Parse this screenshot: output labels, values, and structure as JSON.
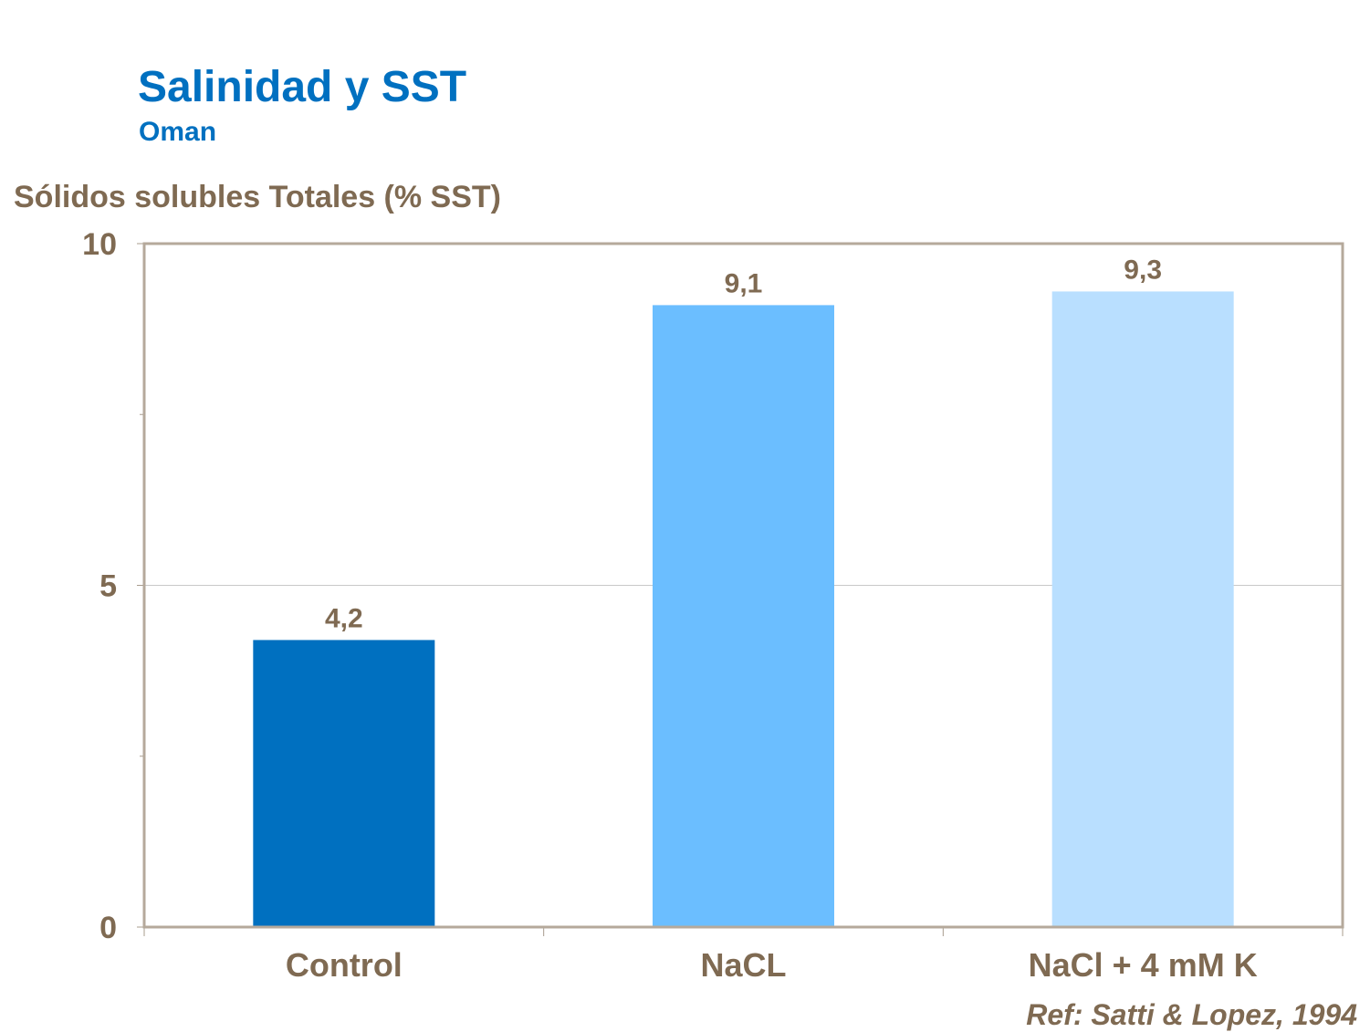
{
  "chart_data": {
    "type": "bar",
    "title": "Salinidad y SST",
    "subtitle": "Oman",
    "ylabel": "Sólidos solubles Totales (% SST)",
    "xlabel": "",
    "categories": [
      "Control",
      "NaCL",
      "NaCl + 4 mM K"
    ],
    "values": [
      4.2,
      9.1,
      9.3
    ],
    "data_labels": [
      "4,2",
      "9,1",
      "9,3"
    ],
    "colors": [
      "#0070C0",
      "#6BBEFF",
      "#B9DFFF"
    ],
    "ylim": [
      0,
      10
    ],
    "yticks": [
      0,
      5,
      10
    ],
    "ytick_labels": [
      "0",
      "5",
      "10"
    ],
    "grid": true,
    "note": "Ref: Satti & Lopez, 1994"
  }
}
